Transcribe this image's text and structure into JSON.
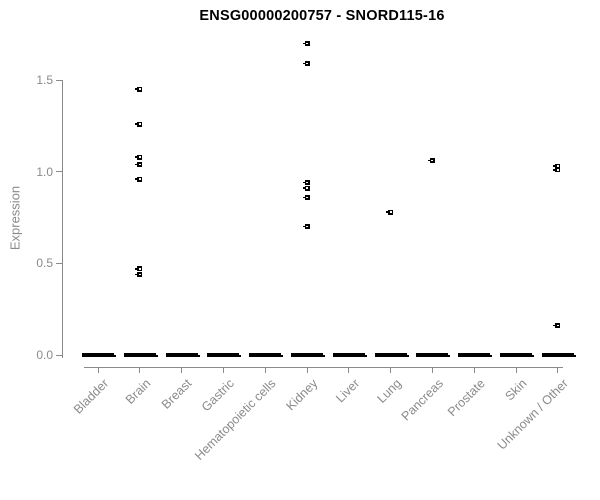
{
  "chart_data": {
    "type": "scatter",
    "title": "ENSG00000200757 - SNORD115-16",
    "subtitle": "",
    "xlabel": "",
    "ylabel": "Expression",
    "ylim": [
      0,
      1.75
    ],
    "yticks": [
      0.0,
      0.5,
      1.0,
      1.5
    ],
    "grid": "off",
    "legend": "none",
    "categories": [
      "Bladder",
      "Brain",
      "Breast",
      "Gastric",
      "Hematopoietic cells",
      "Kidney",
      "Liver",
      "Lung",
      "Pancreas",
      "Prostate",
      "Skin",
      "Unknown / Other"
    ],
    "nonzero_points": [
      {
        "category": "Brain",
        "values": [
          1.45,
          1.26,
          1.08,
          1.04,
          0.96,
          0.47,
          0.44
        ]
      },
      {
        "category": "Kidney",
        "values": [
          1.7,
          1.59,
          0.94,
          0.91,
          0.86,
          0.7
        ]
      },
      {
        "category": "Lung",
        "values": [
          0.78
        ]
      },
      {
        "category": "Pancreas",
        "values": [
          1.06
        ]
      },
      {
        "category": "Unknown / Other",
        "values": [
          1.03,
          1.01,
          0.16
        ]
      }
    ],
    "zero_points": {
      "value": 0.0,
      "categories": "all",
      "note": "every category shows a thick dash of many overlapping points at expression 0"
    },
    "marker": "small-black-open-square"
  },
  "colors": {
    "axis": "#8a8a8a",
    "tick_label": "#8a8a8a",
    "point": "#000000",
    "title": "#000000",
    "background": "#ffffff"
  }
}
